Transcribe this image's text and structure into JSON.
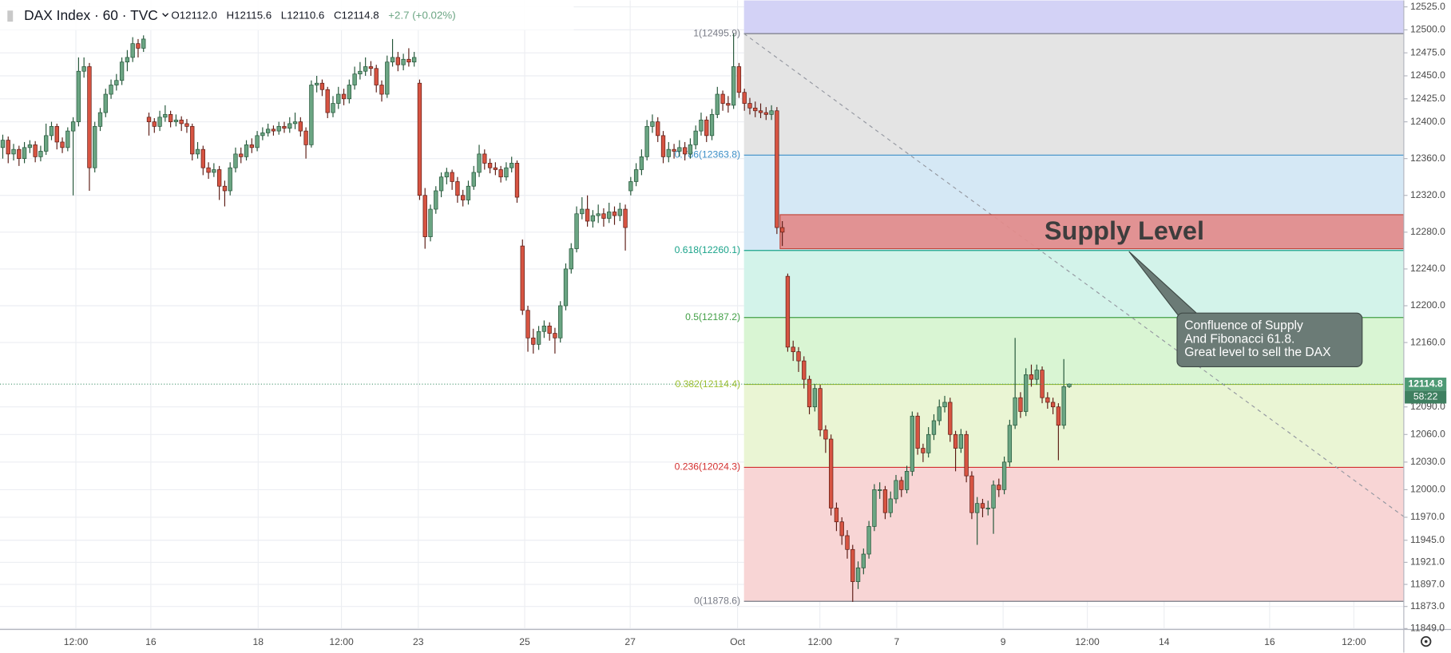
{
  "chart_data": {
    "type": "candlestick",
    "header": {
      "symbol": "DAX Index · 60 · TVC",
      "stats": [
        "O12112.0",
        "H12115.6",
        "L12110.6",
        "C12114.8",
        "+2.7 (+0.02%)"
      ]
    },
    "up_color": "#6ba583",
    "up_border": "#225437",
    "down_color": "#d75442",
    "down_border": "#5b1a13",
    "ylim": [
      11848,
      12532
    ],
    "yticks": [
      {
        "value": 12525,
        "label": "12525.0"
      },
      {
        "value": 12500,
        "label": "12500.0"
      },
      {
        "value": 12475,
        "label": "12475.0"
      },
      {
        "value": 12450,
        "label": "12450.0"
      },
      {
        "value": 12425,
        "label": "12425.0"
      },
      {
        "value": 12400,
        "label": "12400.0"
      },
      {
        "value": 12360,
        "label": "12360.0"
      },
      {
        "value": 12320,
        "label": "12320.0"
      },
      {
        "value": 12280,
        "label": "12280.0"
      },
      {
        "value": 12240,
        "label": "12240.0"
      },
      {
        "value": 12200,
        "label": "12200.0"
      },
      {
        "value": 12160,
        "label": "12160.0"
      },
      {
        "value": 12090,
        "label": "12090.0"
      },
      {
        "value": 12060,
        "label": "12060.0"
      },
      {
        "value": 12030,
        "label": "12030.0"
      },
      {
        "value": 12000,
        "label": "12000.0"
      },
      {
        "value": 11970,
        "label": "11970.0"
      },
      {
        "value": 11945,
        "label": "11945.0"
      },
      {
        "value": 11921,
        "label": "11921.0"
      },
      {
        "value": 11897,
        "label": "11897.0"
      },
      {
        "value": 11873,
        "label": "11873.0"
      },
      {
        "value": 11849,
        "label": "11849.0"
      }
    ],
    "xtick_labels": [
      "12:00",
      "16",
      "18",
      "12:00",
      "23",
      "25",
      "27",
      "Oct",
      "12:00",
      "7",
      "9",
      "12:00",
      "14",
      "16",
      "12:00"
    ],
    "grid": true,
    "last_price": 12114.8,
    "last_price_color": "#4e9a75",
    "countdown": "58:22",
    "fib_top_fill": "#d3d2f6",
    "fib_levels": [
      {
        "value": 12495.9,
        "label": "1(12495.9)",
        "color": "#787b86",
        "fill": "#e4e4e4"
      },
      {
        "value": 12363.8,
        "label": "0.786(12363.8)",
        "color": "#3d8fc7",
        "fill": "#d5e8f5"
      },
      {
        "value": 12260.1,
        "label": "0.618(12260.1)",
        "color": "#1aa38a",
        "fill": "#d3f3ea"
      },
      {
        "value": 12187.2,
        "label": "0.5(12187.2)",
        "color": "#43a047",
        "fill": "#d9f5d3"
      },
      {
        "value": 12114.4,
        "label": "0.382(12114.4)",
        "color": "#9dbf2e",
        "fill": "#eaf5d4"
      },
      {
        "value": 12024.3,
        "label": "0.236(12024.3)",
        "color": "#d32f2f",
        "fill": "#f8d5d5"
      },
      {
        "value": 11878.6,
        "label": "0(11878.6)",
        "color": "#787b86"
      }
    ],
    "supply_zone": {
      "label": "Supply Level",
      "bottom": 12262,
      "top": 12299,
      "color": "#e38b8b"
    },
    "note": [
      "Confluence of Supply",
      "And Fibonacci 61.8.",
      "Great level to sell the DAX"
    ],
    "candles": [
      [
        12372,
        12386,
        12360,
        12380
      ],
      [
        12380,
        12384,
        12355,
        12365
      ],
      [
        12365,
        12376,
        12358,
        12370
      ],
      [
        12370,
        12374,
        12352,
        12360
      ],
      [
        12360,
        12378,
        12355,
        12372
      ],
      [
        12372,
        12380,
        12366,
        12375
      ],
      [
        12375,
        12379,
        12356,
        12362
      ],
      [
        12362,
        12374,
        12357,
        12368
      ],
      [
        12368,
        12398,
        12364,
        12385
      ],
      [
        12385,
        12400,
        12380,
        12395
      ],
      [
        12395,
        12398,
        12370,
        12378
      ],
      [
        12378,
        12383,
        12366,
        12372
      ],
      [
        12372,
        12394,
        12368,
        12390
      ],
      [
        12390,
        12405,
        12320,
        12400
      ],
      [
        12400,
        12470,
        12395,
        12455
      ],
      [
        12455,
        12470,
        12448,
        12460
      ],
      [
        12460,
        12464,
        12325,
        12350
      ],
      [
        12350,
        12400,
        12345,
        12395
      ],
      [
        12395,
        12415,
        12390,
        12410
      ],
      [
        12410,
        12436,
        12405,
        12430
      ],
      [
        12430,
        12446,
        12425,
        12440
      ],
      [
        12440,
        12452,
        12434,
        12445
      ],
      [
        12445,
        12470,
        12440,
        12465
      ],
      [
        12465,
        12478,
        12455,
        12470
      ],
      [
        12470,
        12492,
        12465,
        12485
      ],
      [
        12485,
        12490,
        12470,
        12480
      ],
      [
        12480,
        12494,
        12476,
        12490
      ],
      [
        12405,
        12410,
        12385,
        12400
      ],
      [
        12400,
        12404,
        12388,
        12395
      ],
      [
        12395,
        12412,
        12390,
        12405
      ],
      [
        12405,
        12418,
        12400,
        12408
      ],
      [
        12408,
        12412,
        12394,
        12400
      ],
      [
        12400,
        12408,
        12395,
        12402
      ],
      [
        12402,
        12406,
        12390,
        12398
      ],
      [
        12398,
        12403,
        12388,
        12395
      ],
      [
        12395,
        12398,
        12358,
        12365
      ],
      [
        12365,
        12378,
        12360,
        12370
      ],
      [
        12370,
        12374,
        12342,
        12350
      ],
      [
        12350,
        12356,
        12338,
        12345
      ],
      [
        12345,
        12355,
        12340,
        12348
      ],
      [
        12348,
        12352,
        12315,
        12330
      ],
      [
        12330,
        12336,
        12308,
        12325
      ],
      [
        12325,
        12356,
        12320,
        12350
      ],
      [
        12350,
        12372,
        12345,
        12365
      ],
      [
        12365,
        12372,
        12355,
        12362
      ],
      [
        12362,
        12380,
        12358,
        12375
      ],
      [
        12375,
        12382,
        12366,
        12372
      ],
      [
        12372,
        12390,
        12368,
        12385
      ],
      [
        12385,
        12394,
        12380,
        12388
      ],
      [
        12388,
        12398,
        12384,
        12392
      ],
      [
        12392,
        12396,
        12385,
        12390
      ],
      [
        12390,
        12400,
        12386,
        12395
      ],
      [
        12395,
        12400,
        12388,
        12393
      ],
      [
        12393,
        12405,
        12388,
        12398
      ],
      [
        12398,
        12410,
        12392,
        12400
      ],
      [
        12400,
        12405,
        12384,
        12390
      ],
      [
        12390,
        12394,
        12360,
        12375
      ],
      [
        12375,
        12445,
        12372,
        12440
      ],
      [
        12440,
        12450,
        12432,
        12442
      ],
      [
        12442,
        12446,
        12428,
        12435
      ],
      [
        12435,
        12438,
        12404,
        12410
      ],
      [
        12410,
        12428,
        12405,
        12420
      ],
      [
        12420,
        12438,
        12414,
        12430
      ],
      [
        12430,
        12436,
        12418,
        12425
      ],
      [
        12425,
        12446,
        12420,
        12440
      ],
      [
        12440,
        12460,
        12435,
        12452
      ],
      [
        12452,
        12465,
        12446,
        12455
      ],
      [
        12455,
        12470,
        12450,
        12460
      ],
      [
        12460,
        12466,
        12450,
        12458
      ],
      [
        12458,
        12462,
        12432,
        12440
      ],
      [
        12440,
        12445,
        12422,
        12430
      ],
      [
        12430,
        12472,
        12426,
        12465
      ],
      [
        12465,
        12490,
        12460,
        12470
      ],
      [
        12470,
        12476,
        12455,
        12462
      ],
      [
        12462,
        12474,
        12456,
        12468
      ],
      [
        12468,
        12480,
        12460,
        12465
      ],
      [
        12465,
        12476,
        12460,
        12470
      ],
      [
        12442,
        12446,
        12315,
        12320
      ],
      [
        12320,
        12328,
        12262,
        12275
      ],
      [
        12275,
        12310,
        12270,
        12305
      ],
      [
        12305,
        12330,
        12300,
        12325
      ],
      [
        12325,
        12345,
        12318,
        12340
      ],
      [
        12340,
        12350,
        12332,
        12345
      ],
      [
        12345,
        12348,
        12326,
        12335
      ],
      [
        12335,
        12340,
        12312,
        12320
      ],
      [
        12320,
        12326,
        12308,
        12315
      ],
      [
        12315,
        12336,
        12310,
        12330
      ],
      [
        12330,
        12352,
        12326,
        12345
      ],
      [
        12345,
        12375,
        12340,
        12365
      ],
      [
        12365,
        12370,
        12348,
        12355
      ],
      [
        12355,
        12360,
        12344,
        12350
      ],
      [
        12350,
        12356,
        12342,
        12348
      ],
      [
        12348,
        12352,
        12334,
        12340
      ],
      [
        12340,
        12356,
        12336,
        12350
      ],
      [
        12350,
        12362,
        12345,
        12355
      ],
      [
        12355,
        12358,
        12312,
        12318
      ],
      [
        12265,
        12272,
        12190,
        12195
      ],
      [
        12195,
        12200,
        12150,
        12165
      ],
      [
        12165,
        12175,
        12148,
        12158
      ],
      [
        12158,
        12178,
        12152,
        12172
      ],
      [
        12172,
        12184,
        12165,
        12178
      ],
      [
        12178,
        12182,
        12162,
        12170
      ],
      [
        12170,
        12176,
        12148,
        12165
      ],
      [
        12165,
        12205,
        12160,
        12200
      ],
      [
        12200,
        12246,
        12195,
        12240
      ],
      [
        12240,
        12268,
        12235,
        12262
      ],
      [
        12262,
        12308,
        12258,
        12300
      ],
      [
        12300,
        12318,
        12294,
        12305
      ],
      [
        12305,
        12320,
        12286,
        12292
      ],
      [
        12292,
        12304,
        12285,
        12298
      ],
      [
        12298,
        12310,
        12290,
        12300
      ],
      [
        12300,
        12306,
        12286,
        12295
      ],
      [
        12295,
        12312,
        12290,
        12302
      ],
      [
        12302,
        12308,
        12288,
        12298
      ],
      [
        12298,
        12312,
        12292,
        12305
      ],
      [
        12305,
        12310,
        12260,
        12285
      ],
      [
        12325,
        12340,
        12320,
        12335
      ],
      [
        12335,
        12355,
        12330,
        12348
      ],
      [
        12348,
        12370,
        12342,
        12362
      ],
      [
        12362,
        12402,
        12358,
        12395
      ],
      [
        12395,
        12408,
        12388,
        12400
      ],
      [
        12400,
        12405,
        12378,
        12385
      ],
      [
        12385,
        12390,
        12355,
        12362
      ],
      [
        12362,
        12378,
        12356,
        12370
      ],
      [
        12370,
        12376,
        12360,
        12368
      ],
      [
        12368,
        12380,
        12362,
        12372
      ],
      [
        12372,
        12378,
        12358,
        12365
      ],
      [
        12365,
        12382,
        12360,
        12375
      ],
      [
        12375,
        12396,
        12370,
        12390
      ],
      [
        12390,
        12410,
        12385,
        12402
      ],
      [
        12402,
        12406,
        12378,
        12385
      ],
      [
        12385,
        12414,
        12380,
        12408
      ],
      [
        12408,
        12438,
        12404,
        12430
      ],
      [
        12430,
        12434,
        12412,
        12420
      ],
      [
        12420,
        12428,
        12410,
        12418
      ],
      [
        12418,
        12496,
        12414,
        12460
      ],
      [
        12460,
        12464,
        12426,
        12432
      ],
      [
        12432,
        12436,
        12412,
        12420
      ],
      [
        12420,
        12426,
        12408,
        12415
      ],
      [
        12415,
        12422,
        12405,
        12412
      ],
      [
        12412,
        12420,
        12404,
        12410
      ],
      [
        12410,
        12416,
        12402,
        12408
      ],
      [
        12408,
        12418,
        12402,
        12412
      ],
      [
        12412,
        12416,
        12278,
        12285
      ],
      [
        12285,
        12292,
        12265,
        12280
      ],
      [
        12232,
        12235,
        12150,
        12155
      ],
      [
        12155,
        12162,
        12140,
        12150
      ],
      [
        12150,
        12155,
        12128,
        12140
      ],
      [
        12140,
        12145,
        12110,
        12120
      ],
      [
        12120,
        12124,
        12082,
        12090
      ],
      [
        12090,
        12115,
        12085,
        12110
      ],
      [
        12110,
        12114,
        12058,
        12065
      ],
      [
        12065,
        12070,
        12040,
        12055
      ],
      [
        12055,
        12060,
        11972,
        11980
      ],
      [
        11980,
        11986,
        11955,
        11965
      ],
      [
        11965,
        11970,
        11940,
        11950
      ],
      [
        11950,
        11956,
        11925,
        11935
      ],
      [
        11935,
        11940,
        11878,
        11900
      ],
      [
        11900,
        11922,
        11892,
        11915
      ],
      [
        11915,
        11936,
        11908,
        11930
      ],
      [
        11930,
        11966,
        11925,
        11960
      ],
      [
        11960,
        12006,
        11955,
        12000
      ],
      [
        12000,
        12008,
        11990,
        12000
      ],
      [
        12000,
        12004,
        11968,
        11975
      ],
      [
        11975,
        11998,
        11970,
        11990
      ],
      [
        11990,
        12016,
        11985,
        12010
      ],
      [
        12010,
        12014,
        11992,
        12000
      ],
      [
        12000,
        12026,
        11996,
        12020
      ],
      [
        12020,
        12085,
        12015,
        12080
      ],
      [
        12080,
        12084,
        12038,
        12045
      ],
      [
        12045,
        12050,
        12030,
        12040
      ],
      [
        12040,
        12068,
        12035,
        12060
      ],
      [
        12060,
        12082,
        12054,
        12075
      ],
      [
        12075,
        12098,
        12070,
        12090
      ],
      [
        12090,
        12102,
        12084,
        12095
      ],
      [
        12095,
        12100,
        12052,
        12060
      ],
      [
        12060,
        12064,
        12020,
        12045
      ],
      [
        12045,
        12066,
        12040,
        12060
      ],
      [
        12060,
        12064,
        12008,
        12015
      ],
      [
        12015,
        12020,
        11968,
        11975
      ],
      [
        11975,
        11992,
        11940,
        11985
      ],
      [
        11985,
        11990,
        11970,
        11980
      ],
      [
        11980,
        11988,
        11972,
        11980
      ],
      [
        11980,
        12010,
        11952,
        12005
      ],
      [
        12005,
        12012,
        11992,
        12000
      ],
      [
        12000,
        12036,
        11995,
        12030
      ],
      [
        12030,
        12076,
        12025,
        12070
      ],
      [
        12070,
        12165,
        12066,
        12100
      ],
      [
        12100,
        12106,
        12078,
        12085
      ],
      [
        12085,
        12132,
        12080,
        12125
      ],
      [
        12125,
        12136,
        12112,
        12120
      ],
      [
        12120,
        12136,
        12114,
        12130
      ],
      [
        12130,
        12134,
        12094,
        12100
      ],
      [
        12100,
        12106,
        12088,
        12095
      ],
      [
        12095,
        12100,
        12082,
        12090
      ],
      [
        12090,
        12094,
        12032,
        12070
      ],
      [
        12070,
        12142,
        12066,
        12112
      ],
      [
        12112.0,
        12115.6,
        12110.6,
        12114.8
      ]
    ]
  }
}
